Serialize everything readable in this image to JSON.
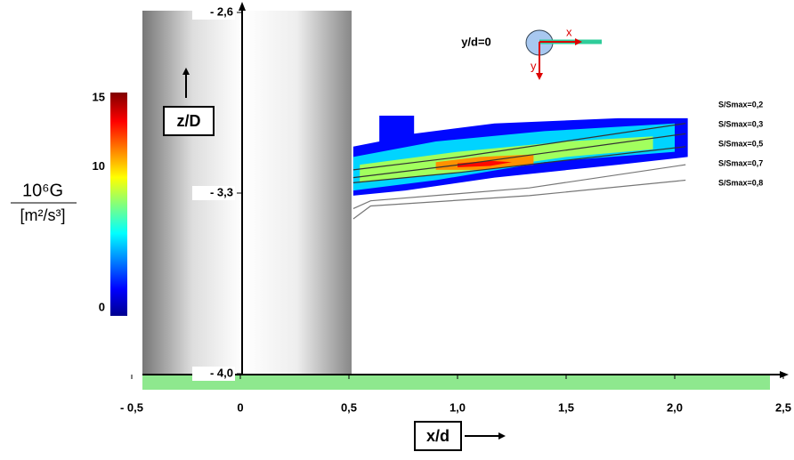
{
  "chart_data": {
    "type": "contour",
    "xlabel": "x/d",
    "ylabel": "z/D",
    "plane_label": "y/d=0",
    "inset_x_label": "x",
    "inset_y_label": "y",
    "xlim": [
      -0.5,
      2.5
    ],
    "xticks": [
      {
        "value": -0.5,
        "label": "- 0,5"
      },
      0,
      {
        "value": 0.5,
        "label": "0,5"
      },
      {
        "value": 1,
        "label": "1,0"
      },
      {
        "value": 1.5,
        "label": "1,5"
      },
      {
        "value": 2,
        "label": "2,0"
      },
      {
        "value": 2.5,
        "label": "2,5"
      }
    ],
    "ylim": [
      -4.0,
      -2.6
    ],
    "yticks": [
      {
        "value": -2.6,
        "label": "- 2,6"
      },
      {
        "value": -3.3,
        "label": "- 3,3"
      },
      {
        "value": -4.0,
        "label": "- 4,0"
      }
    ],
    "colorbar": {
      "label": "10⁶G",
      "unit": "[m²/s³]",
      "clim": [
        0,
        15
      ],
      "ticks": [
        0,
        10,
        15
      ],
      "colormap": "jet"
    },
    "field": [
      {
        "value": 2,
        "x": [
          0.52,
          0.64,
          0.64,
          0.8,
          0.8,
          1.17,
          1.74,
          2.06,
          2.06,
          1.74,
          1.17,
          0.76,
          0.52
        ],
        "z": [
          -3.12,
          -3.1,
          -3.0,
          -3.0,
          -3.07,
          -3.03,
          -3.01,
          -3.01,
          -3.16,
          -3.19,
          -3.24,
          -3.29,
          -3.31
        ]
      },
      {
        "value": 5,
        "x": [
          0.52,
          0.9,
          1.4,
          2.0,
          2.0,
          1.4,
          0.9,
          0.52
        ],
        "z": [
          -3.16,
          -3.1,
          -3.06,
          -3.03,
          -3.14,
          -3.18,
          -3.25,
          -3.29
        ]
      },
      {
        "value": 8,
        "x": [
          0.55,
          1.0,
          1.5,
          1.9,
          1.9,
          1.5,
          1.0,
          0.55
        ],
        "z": [
          -3.19,
          -3.14,
          -3.1,
          -3.08,
          -3.13,
          -3.16,
          -3.22,
          -3.26
        ]
      },
      {
        "value": 11,
        "x": [
          0.9,
          1.1,
          1.35,
          1.35,
          1.1,
          0.9
        ],
        "z": [
          -3.18,
          -3.16,
          -3.15,
          -3.19,
          -3.21,
          -3.21
        ]
      },
      {
        "value": 13,
        "x": [
          1.0,
          1.15,
          1.25,
          1.15,
          1.0
        ],
        "z": [
          -3.185,
          -3.175,
          -3.18,
          -3.195,
          -3.2
        ]
      }
    ],
    "series": [
      {
        "name": "S/Smax=0,2",
        "color": "#333333",
        "x": [
          0.52,
          1.01,
          2.05
        ],
        "z": [
          -3.21,
          -3.16,
          -3.03
        ]
      },
      {
        "name": "S/Smax=0,3",
        "color": "#333333",
        "x": [
          0.52,
          1.01,
          2.05
        ],
        "z": [
          -3.24,
          -3.19,
          -3.07
        ]
      },
      {
        "name": "S/Smax=0,5",
        "color": "#333333",
        "x": [
          0.52,
          1.01,
          2.05
        ],
        "z": [
          -3.26,
          -3.22,
          -3.12
        ]
      },
      {
        "name": "S/Smax=0,7",
        "color": "#777777",
        "x": [
          0.52,
          0.6,
          1.33,
          2.05
        ],
        "z": [
          -3.36,
          -3.33,
          -3.28,
          -3.19
        ]
      },
      {
        "name": "S/Smax=0,8",
        "color": "#777777",
        "x": [
          0.52,
          0.6,
          1.33,
          2.05
        ],
        "z": [
          -3.4,
          -3.35,
          -3.31,
          -3.25
        ]
      }
    ]
  }
}
